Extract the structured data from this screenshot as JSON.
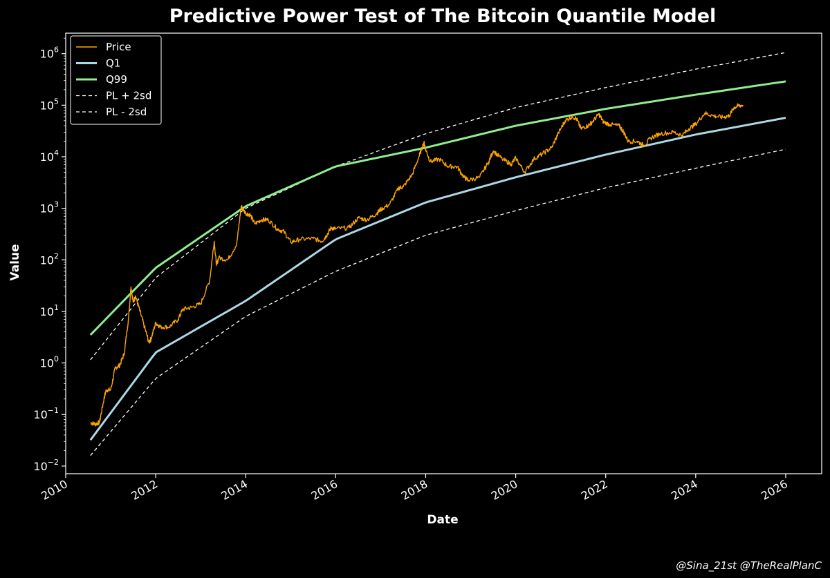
{
  "chart_data": {
    "type": "line",
    "title": "Predictive Power Test of The Bitcoin Quantile Model",
    "xlabel": "Date",
    "ylabel": "Value",
    "yscale": "log",
    "xlim": [
      2010.0,
      2026.8
    ],
    "ylim": [
      0.0071,
      2500000
    ],
    "x_ticks": [
      2010,
      2012,
      2014,
      2016,
      2018,
      2020,
      2022,
      2024,
      2026
    ],
    "x_tick_labels": [
      "2010",
      "2012",
      "2014",
      "2016",
      "2018",
      "2020",
      "2022",
      "2024",
      "2026"
    ],
    "y_ticks": [
      {
        "value": 0.01,
        "base": "10",
        "exp": "−2"
      },
      {
        "value": 0.1,
        "base": "10",
        "exp": "−1"
      },
      {
        "value": 1,
        "base": "10",
        "exp": "0"
      },
      {
        "value": 10,
        "base": "10",
        "exp": "1"
      },
      {
        "value": 100,
        "base": "10",
        "exp": "2"
      },
      {
        "value": 1000,
        "base": "10",
        "exp": "3"
      },
      {
        "value": 10000,
        "base": "10",
        "exp": "4"
      },
      {
        "value": 100000,
        "base": "10",
        "exp": "5"
      },
      {
        "value": 1000000,
        "base": "10",
        "exp": "6"
      }
    ],
    "legend": {
      "placement": "top-left",
      "entries": [
        {
          "label": "Price",
          "color": "#ffa500",
          "style": "solid-thin"
        },
        {
          "label": "Q1",
          "color": "#add8e6",
          "style": "solid-thick"
        },
        {
          "label": "Q99",
          "color": "#90ee90",
          "style": "solid-thick"
        },
        {
          "label": "PL + 2sd",
          "color": "#ffffff",
          "style": "dashed"
        },
        {
          "label": "PL - 2sd",
          "color": "#ffffff",
          "style": "dashed"
        }
      ]
    },
    "series": [
      {
        "name": "Price",
        "color": "#ffa500",
        "points": [
          [
            2010.55,
            0.07
          ],
          [
            2010.65,
            0.065
          ],
          [
            2010.75,
            0.07
          ],
          [
            2010.85,
            0.2
          ],
          [
            2010.9,
            0.3
          ],
          [
            2011.0,
            0.3
          ],
          [
            2011.1,
            0.8
          ],
          [
            2011.2,
            0.9
          ],
          [
            2011.3,
            1.5
          ],
          [
            2011.4,
            8
          ],
          [
            2011.45,
            30
          ],
          [
            2011.5,
            15
          ],
          [
            2011.55,
            20
          ],
          [
            2011.65,
            10
          ],
          [
            2011.75,
            5
          ],
          [
            2011.85,
            2.5
          ],
          [
            2011.9,
            3
          ],
          [
            2012.0,
            6
          ],
          [
            2012.1,
            5
          ],
          [
            2012.3,
            5
          ],
          [
            2012.5,
            7
          ],
          [
            2012.6,
            11
          ],
          [
            2012.8,
            12
          ],
          [
            2013.0,
            14
          ],
          [
            2013.2,
            40
          ],
          [
            2013.3,
            230
          ],
          [
            2013.35,
            80
          ],
          [
            2013.4,
            110
          ],
          [
            2013.6,
            100
          ],
          [
            2013.8,
            200
          ],
          [
            2013.9,
            1100
          ],
          [
            2014.0,
            800
          ],
          [
            2014.1,
            750
          ],
          [
            2014.2,
            500
          ],
          [
            2014.35,
            600
          ],
          [
            2014.5,
            600
          ],
          [
            2014.7,
            400
          ],
          [
            2014.85,
            350
          ],
          [
            2015.0,
            220
          ],
          [
            2015.2,
            250
          ],
          [
            2015.5,
            260
          ],
          [
            2015.7,
            230
          ],
          [
            2015.8,
            300
          ],
          [
            2015.9,
            420
          ],
          [
            2016.0,
            400
          ],
          [
            2016.3,
            420
          ],
          [
            2016.5,
            650
          ],
          [
            2016.7,
            600
          ],
          [
            2016.9,
            780
          ],
          [
            2017.0,
            950
          ],
          [
            2017.2,
            1200
          ],
          [
            2017.4,
            2500
          ],
          [
            2017.5,
            2600
          ],
          [
            2017.7,
            4500
          ],
          [
            2017.85,
            10000
          ],
          [
            2017.96,
            19000
          ],
          [
            2018.0,
            14000
          ],
          [
            2018.1,
            8000
          ],
          [
            2018.3,
            9000
          ],
          [
            2018.5,
            6500
          ],
          [
            2018.7,
            6400
          ],
          [
            2018.85,
            4000
          ],
          [
            2018.95,
            3500
          ],
          [
            2019.2,
            4000
          ],
          [
            2019.4,
            8000
          ],
          [
            2019.5,
            13000
          ],
          [
            2019.7,
            9000
          ],
          [
            2019.9,
            7200
          ],
          [
            2020.0,
            9500
          ],
          [
            2020.2,
            5000
          ],
          [
            2020.4,
            9000
          ],
          [
            2020.6,
            11500
          ],
          [
            2020.8,
            15000
          ],
          [
            2020.95,
            29000
          ],
          [
            2021.1,
            50000
          ],
          [
            2021.25,
            60000
          ],
          [
            2021.35,
            55000
          ],
          [
            2021.45,
            35000
          ],
          [
            2021.6,
            40000
          ],
          [
            2021.7,
            47000
          ],
          [
            2021.85,
            67000
          ],
          [
            2021.95,
            47000
          ],
          [
            2022.1,
            42000
          ],
          [
            2022.3,
            40000
          ],
          [
            2022.4,
            30000
          ],
          [
            2022.5,
            20000
          ],
          [
            2022.7,
            20000
          ],
          [
            2022.85,
            16500
          ],
          [
            2023.0,
            23000
          ],
          [
            2023.2,
            28000
          ],
          [
            2023.5,
            30000
          ],
          [
            2023.7,
            26000
          ],
          [
            2023.85,
            35000
          ],
          [
            2024.0,
            43000
          ],
          [
            2024.2,
            70000
          ],
          [
            2024.4,
            62000
          ],
          [
            2024.6,
            58000
          ],
          [
            2024.75,
            63000
          ],
          [
            2024.85,
            90000
          ],
          [
            2024.95,
            98000
          ],
          [
            2025.05,
            100000
          ]
        ]
      },
      {
        "name": "Q1",
        "color": "#add8e6",
        "x_range": [
          2010.55,
          2026.0
        ],
        "y_start": 0.032,
        "y_end": 57000
      },
      {
        "name": "Q99",
        "color": "#90ee90",
        "x_range": [
          2010.55,
          2026.0
        ],
        "y_start": 3.5,
        "y_end": 290000
      },
      {
        "name": "PL + 2sd",
        "color": "#ffffff",
        "x_range": [
          2010.55,
          2026.0
        ],
        "y_start": 1.15,
        "y_end": 1050000
      },
      {
        "name": "PL - 2sd",
        "color": "#ffffff",
        "x_range": [
          2010.55,
          2026.0
        ],
        "y_start": 0.016,
        "y_end": 14000
      }
    ],
    "anchors": {
      "Q1": [
        [
          2010.55,
          0.032
        ],
        [
          2012,
          1.6
        ],
        [
          2014,
          16
        ],
        [
          2016,
          250
        ],
        [
          2018,
          1300
        ],
        [
          2020,
          4000
        ],
        [
          2022,
          11000
        ],
        [
          2024,
          27000
        ],
        [
          2026,
          57000
        ]
      ],
      "Q99": [
        [
          2010.55,
          3.5
        ],
        [
          2011.5,
          25
        ],
        [
          2012,
          70
        ],
        [
          2014,
          1100
        ],
        [
          2016,
          6500
        ],
        [
          2018,
          15000
        ],
        [
          2020,
          40000
        ],
        [
          2022,
          85000
        ],
        [
          2024,
          160000
        ],
        [
          2026,
          290000
        ]
      ],
      "PL + 2sd": [
        [
          2010.55,
          1.15
        ],
        [
          2012,
          45
        ],
        [
          2014,
          1000
        ],
        [
          2016,
          6500
        ],
        [
          2018,
          28000
        ],
        [
          2020,
          90000
        ],
        [
          2022,
          220000
        ],
        [
          2024,
          500000
        ],
        [
          2026,
          1050000
        ]
      ],
      "PL - 2sd": [
        [
          2010.55,
          0.016
        ],
        [
          2012,
          0.5
        ],
        [
          2014,
          8
        ],
        [
          2016,
          60
        ],
        [
          2018,
          300
        ],
        [
          2020,
          900
        ],
        [
          2022,
          2500
        ],
        [
          2024,
          6000
        ],
        [
          2026,
          14000
        ]
      ]
    }
  },
  "credit": "@Sina_21st @TheRealPlanC"
}
